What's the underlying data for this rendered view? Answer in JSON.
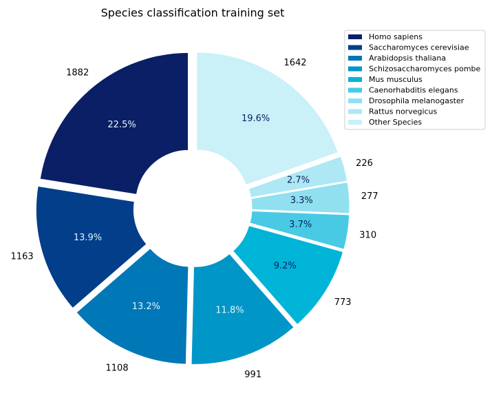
{
  "chart_data": {
    "type": "pie",
    "donut": true,
    "title": "Species classification training set",
    "legend_position": "top-right",
    "slices": [
      {
        "label": "Other Species",
        "value": 1642,
        "percent": "19.6%",
        "color": "#caf0f8",
        "pct_color": "#0b1f5f"
      },
      {
        "label": "Rattus norvegicus",
        "value": 226,
        "percent": "2.7%",
        "color": "#ade8f4",
        "pct_color": "#0b1f5f"
      },
      {
        "label": "Drosophila melanogaster",
        "value": 277,
        "percent": "3.3%",
        "color": "#90e0ef",
        "pct_color": "#0b1f5f"
      },
      {
        "label": "Caenorhabditis elegans",
        "value": 310,
        "percent": "3.7%",
        "color": "#48cae4",
        "pct_color": "#0b1f5f"
      },
      {
        "label": "Mus musculus",
        "value": 773,
        "percent": "9.2%",
        "color": "#00b4d8",
        "pct_color": "#0b1f5f"
      },
      {
        "label": "Schizosaccharomyces pombe",
        "value": 991,
        "percent": "11.8%",
        "color": "#0096c7",
        "pct_color": "#e0f4fb"
      },
      {
        "label": "Arabidopsis thaliana",
        "value": 1108,
        "percent": "13.2%",
        "color": "#0077b6",
        "pct_color": "#e0f4fb"
      },
      {
        "label": "Saccharomyces cerevisiae",
        "value": 1163,
        "percent": "13.9%",
        "color": "#023e8a",
        "pct_color": "#e0f4fb"
      },
      {
        "label": "Homo sapiens",
        "value": 1882,
        "percent": "22.5%",
        "color": "#0b1f66",
        "pct_color": "#e0f4fb"
      }
    ],
    "legend_order": [
      "Homo sapiens",
      "Saccharomyces cerevisiae",
      "Arabidopsis thaliana",
      "Schizosaccharomyces pombe",
      "Mus musculus",
      "Caenorhabditis elegans",
      "Drosophila melanogaster",
      "Rattus norvegicus",
      "Other Species"
    ]
  }
}
